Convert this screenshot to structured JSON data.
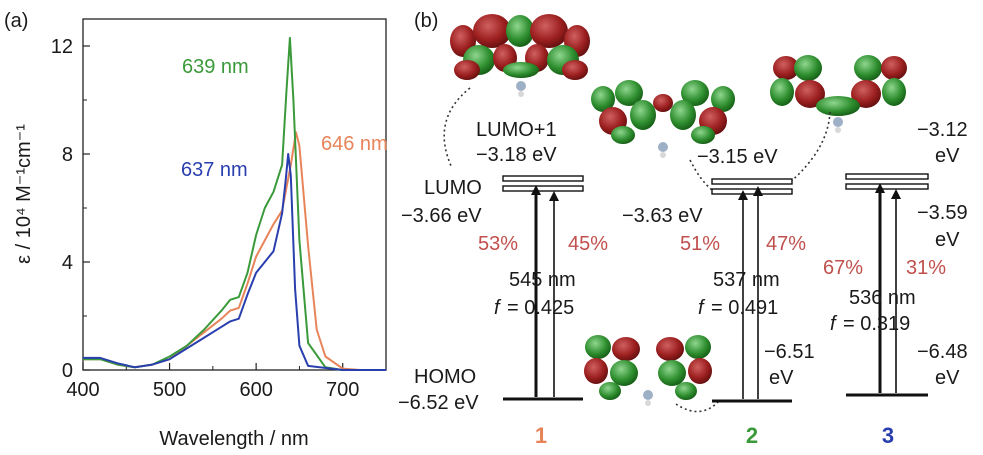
{
  "panels": {
    "a": "(a)",
    "b": "(b)"
  },
  "colors": {
    "c1": "#e8845a",
    "c2": "#3a9a3a",
    "c3": "#2a3fae",
    "pct": "#c0504d"
  },
  "chart_data": [
    {
      "type": "line",
      "xlabel": "Wavelength / nm",
      "ylabel": "ε / 10⁴ M⁻¹cm⁻¹",
      "xlim": [
        400,
        750
      ],
      "ylim": [
        0,
        13
      ],
      "x_ticks": [
        400,
        500,
        600,
        700
      ],
      "y_ticks": [
        0,
        4,
        8,
        12
      ],
      "grid": false,
      "annotations": [
        "639 nm",
        "646 nm",
        "637 nm"
      ],
      "series": [
        {
          "color": "#e8845a",
          "x": [
            400,
            420,
            440,
            460,
            480,
            500,
            520,
            540,
            560,
            570,
            580,
            590,
            600,
            610,
            620,
            630,
            640,
            646,
            650,
            660,
            670,
            680,
            700,
            720,
            750
          ],
          "y": [
            0.4,
            0.4,
            0.2,
            0.1,
            0.2,
            0.4,
            0.9,
            1.4,
            1.9,
            2.2,
            2.3,
            3.2,
            4.2,
            4.8,
            5.4,
            5.9,
            7.6,
            8.8,
            8.3,
            4.6,
            1.5,
            0.5,
            0.05,
            0.0,
            0.0
          ]
        },
        {
          "color": "#3a9a3a",
          "x": [
            400,
            420,
            440,
            460,
            480,
            500,
            520,
            540,
            560,
            570,
            580,
            590,
            600,
            610,
            620,
            630,
            635,
            639,
            643,
            650,
            660,
            680,
            700,
            750
          ],
          "y": [
            0.4,
            0.4,
            0.2,
            0.1,
            0.2,
            0.5,
            0.9,
            1.5,
            2.2,
            2.6,
            2.7,
            3.6,
            5.0,
            6.0,
            6.6,
            7.6,
            10.3,
            12.3,
            10.0,
            4.8,
            1.0,
            0.1,
            0.0,
            0.0
          ]
        },
        {
          "color": "#2a3fae",
          "x": [
            400,
            420,
            440,
            460,
            480,
            500,
            520,
            540,
            560,
            570,
            580,
            590,
            600,
            610,
            620,
            630,
            634,
            637,
            640,
            645,
            650,
            660,
            700,
            750
          ],
          "y": [
            0.45,
            0.45,
            0.25,
            0.1,
            0.2,
            0.4,
            0.8,
            1.2,
            1.6,
            1.8,
            1.9,
            2.8,
            3.6,
            4.0,
            4.4,
            5.8,
            7.0,
            8.0,
            7.2,
            3.0,
            0.9,
            0.15,
            0.0,
            0.0
          ]
        }
      ]
    },
    {
      "type": "diagram",
      "levels": {
        "lumo1_label": "LUMO+1",
        "lumo1_energy": "−3.18 eV",
        "lumo_label": "LUMO",
        "lumo_energy": "−3.66 eV",
        "homo_label": "HOMO",
        "homo_energy": "−6.52 eV",
        "c2_upper": "−3.15 eV",
        "c2_lower": "−3.63 eV",
        "c2_homo": "−6.51",
        "c2_homo_unit": "eV",
        "c3_upper": "−3.12",
        "c3_upper_unit": "eV",
        "c3_lower": "−3.59",
        "c3_lower_unit": "eV",
        "c3_homo": "−6.48",
        "c3_homo_unit": "eV"
      },
      "compounds": [
        {
          "id": "1",
          "color": "#e8845a",
          "pct_homo_lumo": "53%",
          "pct_homo_lumo1": "45%",
          "wavelength": "545 nm",
          "f_label": "f",
          "f_value": "= 0.425"
        },
        {
          "id": "2",
          "color": "#3a9a3a",
          "pct_homo_lumo": "51%",
          "pct_homo_lumo1": "47%",
          "wavelength": "537 nm",
          "f_label": "f",
          "f_value": "= 0.491"
        },
        {
          "id": "3",
          "color": "#2a3fae",
          "pct_homo_lumo": "67%",
          "pct_homo_lumo1": "31%",
          "wavelength": "536 nm",
          "f_label": "f",
          "f_value": "= 0.319"
        }
      ]
    }
  ]
}
